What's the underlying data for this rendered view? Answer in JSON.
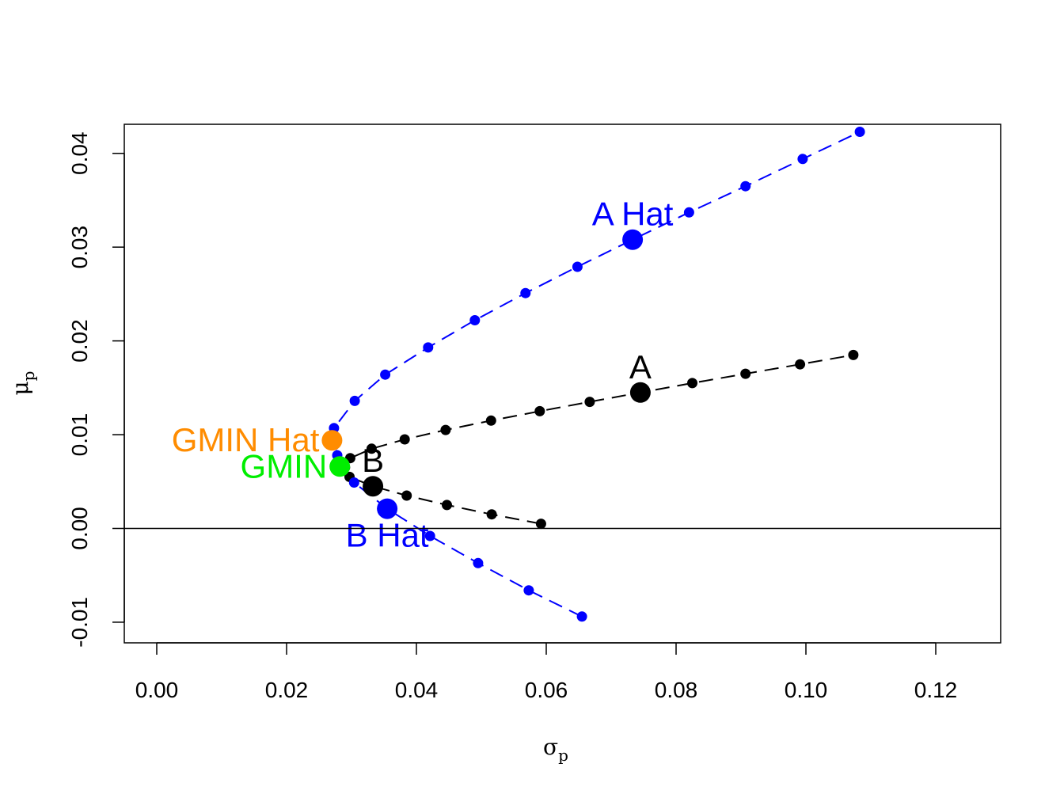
{
  "chart_data": {
    "type": "scatter",
    "title": "",
    "xlabel": "σ",
    "xlabel_sub": "p",
    "ylabel": "μ",
    "ylabel_sub": "p",
    "xlim": [
      -0.005,
      0.13
    ],
    "ylim": [
      -0.0122,
      0.0431
    ],
    "x_ticks": [
      0.0,
      0.02,
      0.04,
      0.06,
      0.08,
      0.1,
      0.12
    ],
    "x_tick_labels": [
      "0.00",
      "0.02",
      "0.04",
      "0.06",
      "0.08",
      "0.10",
      "0.12"
    ],
    "y_ticks": [
      -0.01,
      0.0,
      0.01,
      0.02,
      0.03,
      0.04
    ],
    "y_tick_labels": [
      "-0.01",
      "0.00",
      "0.01",
      "0.02",
      "0.03",
      "0.04"
    ],
    "grid": false,
    "reference_lines": [
      {
        "axis": "y",
        "value": 0
      }
    ],
    "series": [
      {
        "color": "#000000",
        "line_style": "dashed",
        "x": [
          0.0592,
          0.0516,
          0.0447,
          0.0385,
          0.0333,
          0.0297,
          0.029,
          0.0298,
          0.0331,
          0.0382,
          0.0445,
          0.0515,
          0.059,
          0.0667,
          0.0745,
          0.0825,
          0.0907,
          0.0991,
          0.1073
        ],
        "y": [
          0.0005,
          0.0015,
          0.0025,
          0.0035,
          0.0045,
          0.0055,
          0.0065,
          0.0075,
          0.0085,
          0.0095,
          0.0105,
          0.0115,
          0.0125,
          0.0135,
          0.0145,
          0.0155,
          0.0165,
          0.0175,
          0.0185
        ]
      },
      {
        "color": "#0000ff",
        "line_style": "dashed",
        "x": [
          0.0655,
          0.0573,
          0.0495,
          0.0421,
          0.0355,
          0.0304,
          0.0278,
          0.0273,
          0.0305,
          0.0352,
          0.0418,
          0.049,
          0.0568,
          0.0648,
          0.0733,
          0.082,
          0.0907,
          0.0995,
          0.1083
        ],
        "y": [
          -0.0094,
          -0.0066,
          -0.0037,
          -0.0008,
          0.0021,
          0.0049,
          0.0078,
          0.0107,
          0.0136,
          0.0164,
          0.0193,
          0.0222,
          0.0251,
          0.0279,
          0.0308,
          0.0337,
          0.0365,
          0.0394,
          0.0423
        ]
      }
    ],
    "labeled_points": [
      {
        "name": "A",
        "label": "A",
        "x": 0.0745,
        "y": 0.0145,
        "color": "#000000"
      },
      {
        "name": "B",
        "label": "B",
        "x": 0.0333,
        "y": 0.0045,
        "color": "#000000"
      },
      {
        "name": "A Hat",
        "label": "A Hat",
        "x": 0.0733,
        "y": 0.0308,
        "color": "#0000ff"
      },
      {
        "name": "B Hat",
        "label": "B Hat",
        "x": 0.0355,
        "y": 0.0021,
        "color": "#0000ff"
      },
      {
        "name": "GMIN",
        "label": "GMIN",
        "x": 0.0282,
        "y": 0.0066,
        "color": "#00ee00"
      },
      {
        "name": "GMIN Hat",
        "label": "GMIN Hat",
        "x": 0.027,
        "y": 0.0094,
        "color": "#ff8c00"
      }
    ]
  }
}
